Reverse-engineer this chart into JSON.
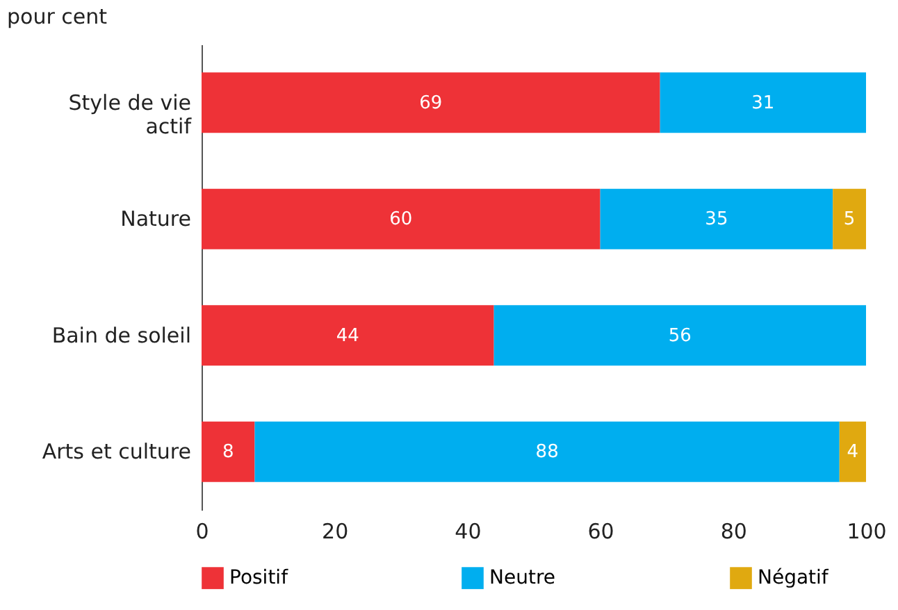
{
  "chart_data": {
    "type": "bar",
    "orientation": "horizontal",
    "stacked": true,
    "title": "pour cent",
    "categories": [
      "Style de vie actif",
      "Nature",
      "Bain de soleil",
      "Arts et culture"
    ],
    "series": [
      {
        "name": "Positif",
        "color": "#ee3237",
        "values": [
          69,
          60,
          44,
          8
        ]
      },
      {
        "name": "Neutre",
        "color": "#00aeef",
        "values": [
          31,
          35,
          56,
          88
        ]
      },
      {
        "name": "Négatif",
        "color": "#e0a910",
        "values": [
          null,
          5,
          null,
          4
        ]
      }
    ],
    "xlim": [
      0,
      100
    ],
    "xticks": [
      0,
      20,
      40,
      60,
      80,
      100
    ],
    "data_labels": true,
    "legend": "bottom",
    "grid": false
  }
}
